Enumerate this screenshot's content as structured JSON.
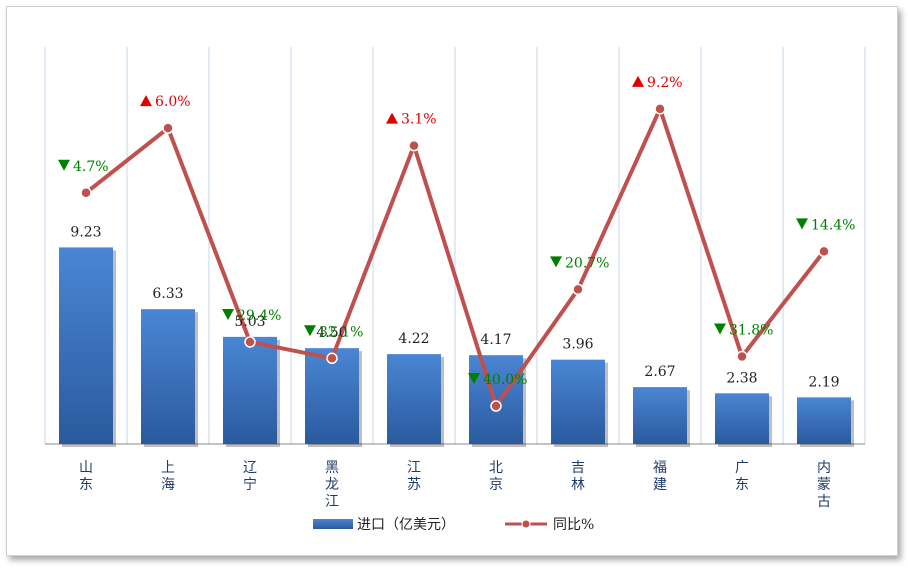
{
  "chart_data": {
    "type": "bar",
    "title": "",
    "xlabel": "",
    "ylabel": "",
    "categories": [
      "山东",
      "上海",
      "辽宁",
      "黑龙江",
      "江苏",
      "北京",
      "吉林",
      "福建",
      "广东",
      "内蒙古"
    ],
    "series": [
      {
        "name": "进口（亿美元）",
        "type": "bar",
        "values": [
          9.23,
          6.33,
          5.03,
          4.5,
          4.22,
          4.17,
          3.96,
          2.67,
          2.38,
          2.19
        ],
        "labels": [
          "9.23",
          "6.33",
          "5.03",
          "4.50",
          "4.22",
          "4.17",
          "3.96",
          "2.67",
          "2.38",
          "2.19"
        ]
      },
      {
        "name": "同比%",
        "type": "line",
        "values": [
          -4.7,
          6.0,
          -29.4,
          -32.1,
          3.1,
          -40.0,
          -20.7,
          9.2,
          -31.8,
          -14.4
        ],
        "labels": [
          "4.7%",
          "6.0%",
          "29.4%",
          "32.1%",
          "3.1%",
          "40.0%",
          "20.7%",
          "9.2%",
          "31.8%",
          "14.4%"
        ]
      }
    ],
    "grid": true,
    "legend": "bottom",
    "colors": {
      "bar": "#3a73c4",
      "line": "#c0504d",
      "up": "#e00000",
      "down": "#008000",
      "grid": "#c5d6ea"
    }
  }
}
